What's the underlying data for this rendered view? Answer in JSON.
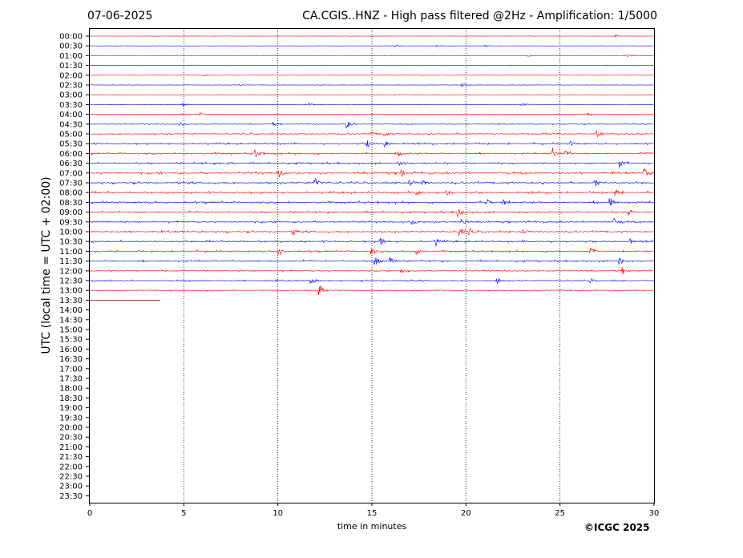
{
  "header": {
    "date": "07-06-2025",
    "title": "CA.CGIS..HNZ - High pass filtered @2Hz - Amplification: 1/5000"
  },
  "credit": "©ICGC 2025",
  "chart_data": {
    "type": "line",
    "title": "CA.CGIS..HNZ - High pass filtered @2Hz - Amplification: 1/5000",
    "xlabel": "time in minutes",
    "ylabel": "UTC (local time = UTC + 02:00)",
    "xlim": [
      0,
      30
    ],
    "xticks": [
      0,
      5,
      10,
      15,
      20,
      25,
      30
    ],
    "vertical_gridlines_at": [
      5,
      10,
      15,
      20,
      25
    ],
    "row_labels": [
      "00:00",
      "00:30",
      "01:00",
      "01:30",
      "02:00",
      "02:30",
      "03:00",
      "03:30",
      "04:00",
      "04:30",
      "05:00",
      "05:30",
      "06:00",
      "06:30",
      "07:00",
      "07:30",
      "08:00",
      "08:30",
      "09:00",
      "09:30",
      "10:00",
      "10:30",
      "11:00",
      "11:30",
      "12:00",
      "12:30",
      "13:00",
      "13:30",
      "14:00",
      "14:30",
      "15:00",
      "15:30",
      "16:00",
      "16:30",
      "17:00",
      "17:30",
      "18:00",
      "18:30",
      "19:00",
      "19:30",
      "20:00",
      "20:30",
      "21:00",
      "21:30",
      "22:00",
      "22:30",
      "23:00",
      "23:30"
    ],
    "colors": [
      "#ff0000",
      "#0000ff"
    ],
    "recorded_rows": 27,
    "partial_row": {
      "label": "13:30",
      "end_minute": 3.75
    },
    "activity": [
      0.05,
      0.1,
      0.06,
      0.05,
      0.08,
      0.1,
      0.1,
      0.18,
      0.22,
      0.35,
      0.6,
      0.7,
      0.8,
      0.8,
      0.9,
      0.9,
      0.85,
      0.85,
      0.8,
      0.75,
      0.8,
      0.8,
      0.75,
      0.7,
      0.6,
      0.55,
      0.4
    ],
    "events": [
      {
        "row": "00:00",
        "minute": 28.0,
        "amp": 0.5
      },
      {
        "row": "00:30",
        "minute": 16.3,
        "amp": 0.4
      },
      {
        "row": "00:30",
        "minute": 18.5,
        "amp": 0.4
      },
      {
        "row": "00:30",
        "minute": 21.0,
        "amp": 0.3
      },
      {
        "row": "01:00",
        "minute": 23.3,
        "amp": 0.4
      },
      {
        "row": "01:00",
        "minute": 28.6,
        "amp": 0.4
      },
      {
        "row": "01:30",
        "minute": 14.8,
        "amp": 0.3
      },
      {
        "row": "02:00",
        "minute": 6.1,
        "amp": 0.3
      },
      {
        "row": "02:30",
        "minute": 19.8,
        "amp": 0.9
      },
      {
        "row": "02:30",
        "minute": 8.0,
        "amp": 0.3
      },
      {
        "row": "03:00",
        "minute": 16.5,
        "amp": 0.3
      },
      {
        "row": "03:30",
        "minute": 5.0,
        "amp": 0.5
      },
      {
        "row": "03:30",
        "minute": 11.7,
        "amp": 0.6
      },
      {
        "row": "03:30",
        "minute": 23.0,
        "amp": 0.6
      },
      {
        "row": "04:00",
        "minute": 5.9,
        "amp": 0.7
      },
      {
        "row": "04:00",
        "minute": 15.0,
        "amp": 0.5
      },
      {
        "row": "04:00",
        "minute": 26.5,
        "amp": 0.7
      },
      {
        "row": "04:30",
        "minute": 4.8,
        "amp": 0.9
      },
      {
        "row": "04:30",
        "minute": 13.7,
        "amp": 1.5
      },
      {
        "row": "04:30",
        "minute": 9.8,
        "amp": 0.5
      },
      {
        "row": "05:00",
        "minute": 15.0,
        "amp": 0.9
      },
      {
        "row": "05:00",
        "minute": 15.7,
        "amp": 1.0
      },
      {
        "row": "05:00",
        "minute": 27.0,
        "amp": 1.3
      },
      {
        "row": "05:30",
        "minute": 14.8,
        "amp": 1.2
      },
      {
        "row": "05:30",
        "minute": 15.7,
        "amp": 1.3
      },
      {
        "row": "05:30",
        "minute": 25.6,
        "amp": 0.9
      },
      {
        "row": "06:00",
        "minute": 8.8,
        "amp": 1.6
      },
      {
        "row": "06:00",
        "minute": 16.4,
        "amp": 1.5
      },
      {
        "row": "06:00",
        "minute": 24.6,
        "amp": 2.0
      },
      {
        "row": "06:00",
        "minute": 25.3,
        "amp": 1.2
      },
      {
        "row": "06:30",
        "minute": 7.3,
        "amp": 1.0
      },
      {
        "row": "06:30",
        "minute": 16.4,
        "amp": 1.0
      },
      {
        "row": "06:30",
        "minute": 28.2,
        "amp": 1.5
      },
      {
        "row": "07:00",
        "minute": 10.1,
        "amp": 1.6
      },
      {
        "row": "07:00",
        "minute": 16.6,
        "amp": 1.3
      },
      {
        "row": "07:00",
        "minute": 29.5,
        "amp": 1.5
      },
      {
        "row": "07:30",
        "minute": 12.0,
        "amp": 1.6
      },
      {
        "row": "07:30",
        "minute": 17.0,
        "amp": 1.4
      },
      {
        "row": "07:30",
        "minute": 17.7,
        "amp": 1.3
      },
      {
        "row": "07:30",
        "minute": 26.9,
        "amp": 1.6
      },
      {
        "row": "08:00",
        "minute": 17.4,
        "amp": 1.2
      },
      {
        "row": "08:00",
        "minute": 19.0,
        "amp": 1.1
      },
      {
        "row": "08:00",
        "minute": 28.0,
        "amp": 1.2
      },
      {
        "row": "08:30",
        "minute": 21.1,
        "amp": 1.6
      },
      {
        "row": "08:30",
        "minute": 22.0,
        "amp": 1.0
      },
      {
        "row": "08:30",
        "minute": 27.7,
        "amp": 1.5
      },
      {
        "row": "09:00",
        "minute": 19.6,
        "amp": 1.5
      },
      {
        "row": "09:00",
        "minute": 28.7,
        "amp": 1.3
      },
      {
        "row": "09:30",
        "minute": 17.2,
        "amp": 1.0
      },
      {
        "row": "09:30",
        "minute": 19.8,
        "amp": 1.3
      },
      {
        "row": "09:30",
        "minute": 27.9,
        "amp": 1.3
      },
      {
        "row": "10:00",
        "minute": 10.8,
        "amp": 1.5
      },
      {
        "row": "10:00",
        "minute": 19.7,
        "amp": 1.5
      },
      {
        "row": "10:00",
        "minute": 20.2,
        "amp": 1.2
      },
      {
        "row": "10:00",
        "minute": 23.0,
        "amp": 1.2
      },
      {
        "row": "10:30",
        "minute": 15.5,
        "amp": 1.3
      },
      {
        "row": "10:30",
        "minute": 18.4,
        "amp": 1.3
      },
      {
        "row": "10:30",
        "minute": 28.7,
        "amp": 1.1
      },
      {
        "row": "11:00",
        "minute": 10.1,
        "amp": 1.3
      },
      {
        "row": "11:00",
        "minute": 15.0,
        "amp": 1.3
      },
      {
        "row": "11:00",
        "minute": 17.4,
        "amp": 1.1
      },
      {
        "row": "11:00",
        "minute": 26.6,
        "amp": 1.7
      },
      {
        "row": "11:30",
        "minute": 15.2,
        "amp": 1.6
      },
      {
        "row": "11:30",
        "minute": 16.0,
        "amp": 1.3
      },
      {
        "row": "11:30",
        "minute": 28.2,
        "amp": 1.5
      },
      {
        "row": "12:00",
        "minute": 16.6,
        "amp": 1.2
      },
      {
        "row": "12:00",
        "minute": 28.3,
        "amp": 1.6
      },
      {
        "row": "12:30",
        "minute": 11.8,
        "amp": 1.1
      },
      {
        "row": "12:30",
        "minute": 21.7,
        "amp": 1.3
      },
      {
        "row": "12:30",
        "minute": 26.6,
        "amp": 1.0
      },
      {
        "row": "13:00",
        "minute": 12.2,
        "amp": 2.4
      }
    ]
  }
}
